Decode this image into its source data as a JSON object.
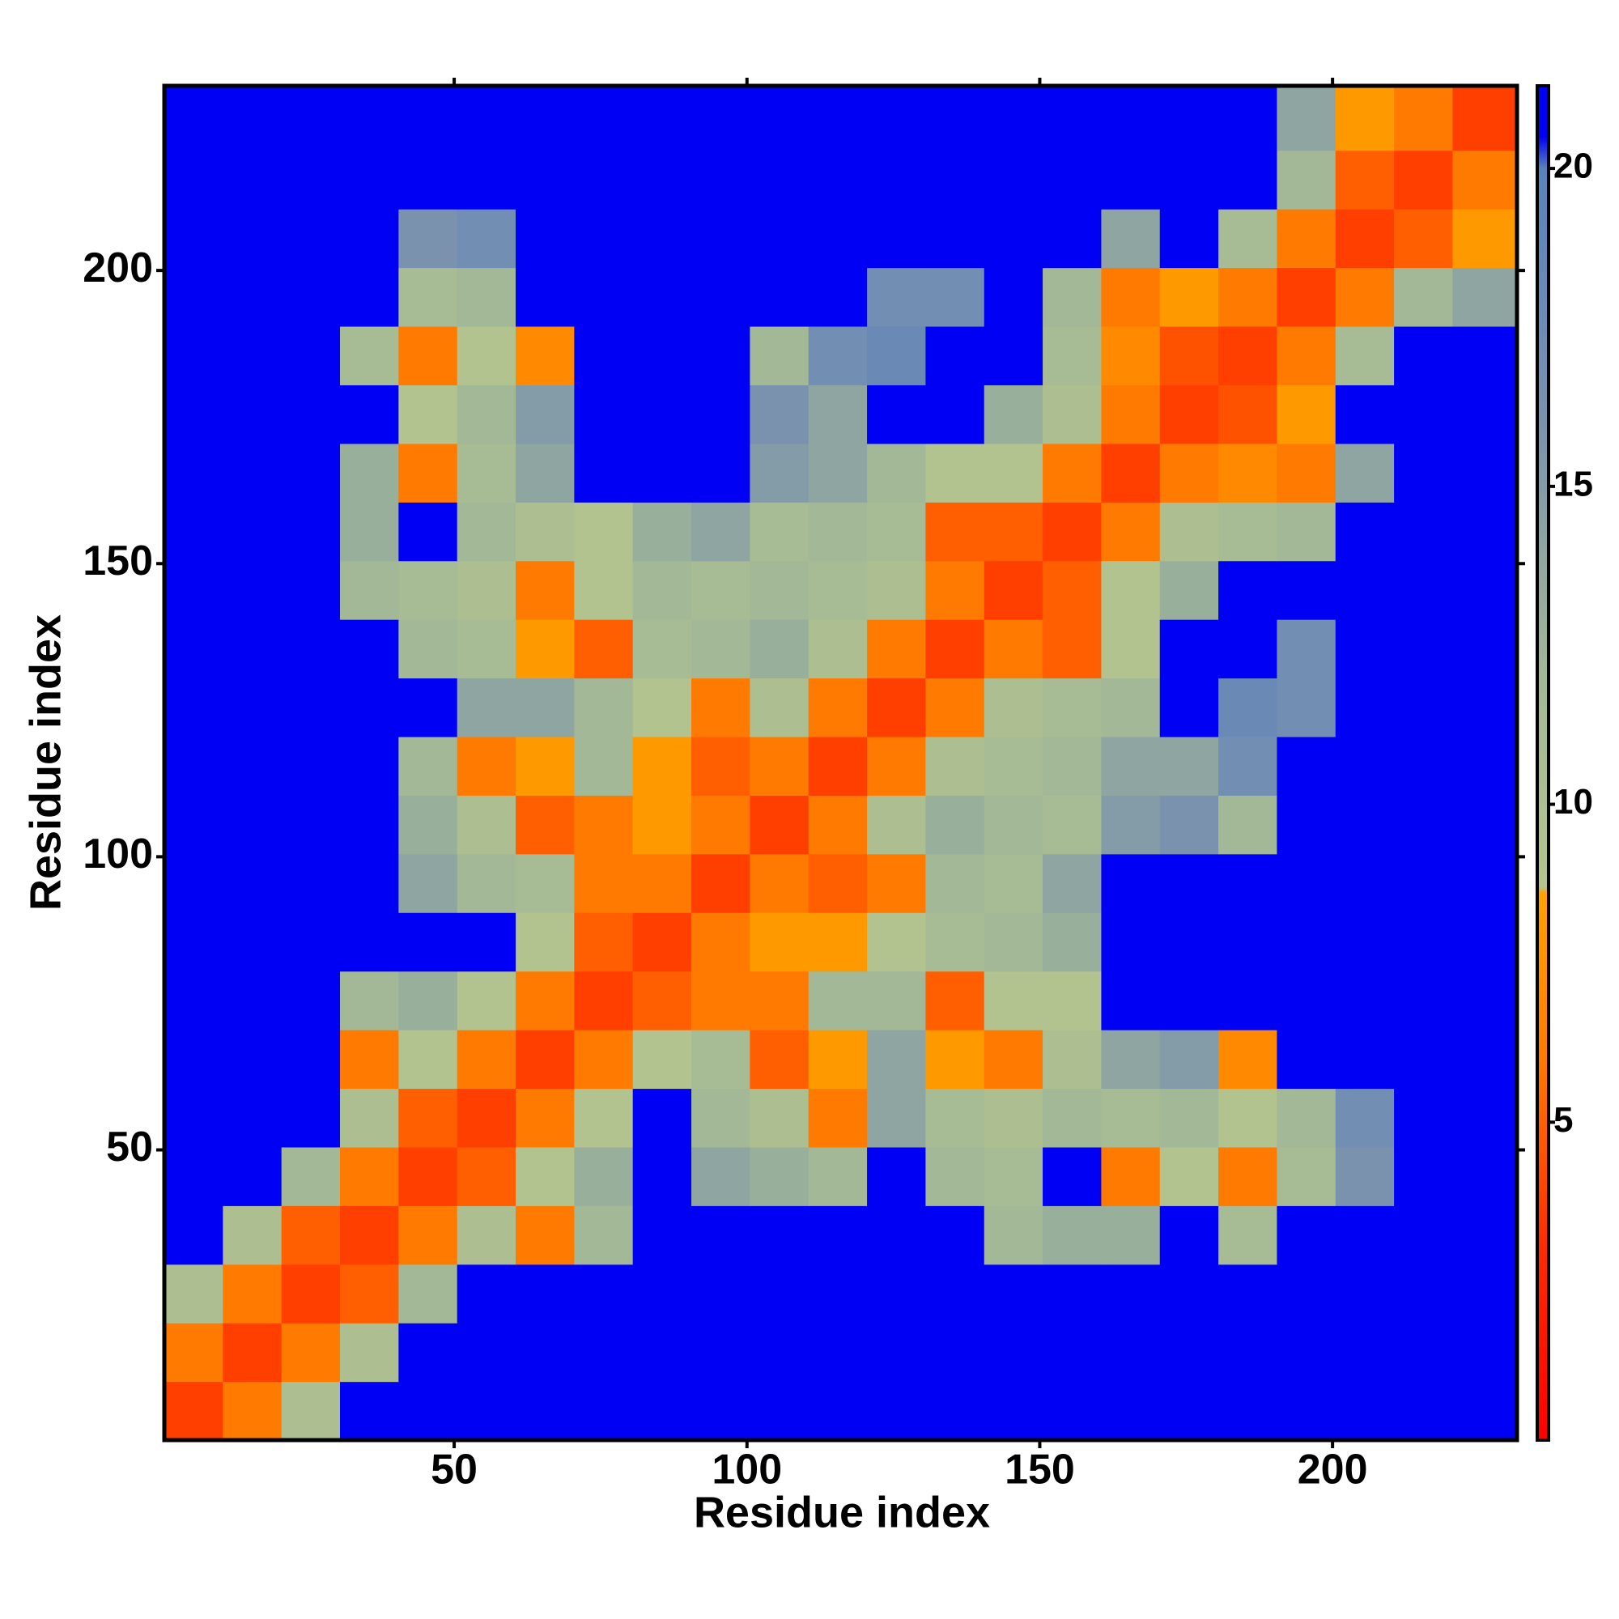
{
  "chart_data": {
    "type": "heatmap",
    "xlabel": "Residue index",
    "ylabel": "Residue index",
    "xlim": [
      0.5,
      231.5
    ],
    "ylim": [
      0.5,
      231.5
    ],
    "xticks": [
      50,
      100,
      150,
      200
    ],
    "yticks": [
      50,
      100,
      150,
      200
    ],
    "x_edges": [
      0.5,
      10.5,
      20.5,
      30.5,
      40.5,
      50.5,
      60.5,
      70.5,
      80.5,
      90.5,
      100.5,
      110.5,
      120.5,
      130.5,
      140.5,
      150.5,
      160.5,
      170.5,
      180.5,
      190.5,
      200.5,
      210.5,
      220.5,
      231.5
    ],
    "y_edges": [
      0.5,
      10.5,
      20.5,
      30.5,
      40.5,
      50.5,
      60.5,
      70.5,
      80.5,
      90.5,
      100.5,
      110.5,
      120.5,
      130.5,
      140.5,
      150.5,
      160.5,
      170.5,
      180.5,
      190.5,
      200.5,
      210.5,
      220.5,
      231.5
    ],
    "z": [
      [
        3.8,
        6,
        10,
        21,
        21,
        21,
        21,
        21,
        21,
        21,
        21,
        21,
        21,
        21,
        21,
        21,
        21,
        21,
        21,
        21,
        21,
        21,
        21
      ],
      [
        6,
        3.8,
        6,
        10,
        21,
        21,
        21,
        21,
        21,
        21,
        21,
        21,
        21,
        21,
        21,
        21,
        21,
        21,
        21,
        21,
        21,
        21,
        21
      ],
      [
        10,
        6,
        3.8,
        5,
        12,
        21,
        21,
        21,
        21,
        21,
        21,
        21,
        21,
        21,
        21,
        21,
        21,
        21,
        21,
        21,
        21,
        21,
        21
      ],
      [
        21,
        10,
        5,
        3.8,
        6,
        10,
        6,
        12,
        21,
        21,
        21,
        21,
        21,
        21,
        12,
        13,
        13,
        21,
        11,
        21,
        21,
        21,
        21
      ],
      [
        21,
        21,
        12,
        6,
        3.8,
        5,
        9,
        13,
        21,
        14,
        13,
        12,
        21,
        12,
        11,
        21,
        6,
        9,
        6,
        11,
        16,
        21,
        21
      ],
      [
        21,
        21,
        21,
        10,
        5,
        3.8,
        6,
        9,
        21,
        12,
        10,
        6,
        14,
        11,
        10,
        12,
        11,
        12,
        9,
        12,
        17,
        21,
        21
      ],
      [
        21,
        21,
        21,
        6,
        9,
        6,
        3.8,
        6,
        9,
        11,
        5,
        8,
        14,
        8,
        6,
        10,
        14,
        15,
        7,
        21,
        21,
        21,
        21
      ],
      [
        21,
        21,
        21,
        12,
        13,
        9,
        6,
        3.8,
        5,
        6,
        6,
        12,
        12,
        5,
        9,
        9,
        21,
        21,
        21,
        21,
        21,
        21,
        21
      ],
      [
        21,
        21,
        21,
        21,
        21,
        21,
        9,
        5,
        3.8,
        6,
        8,
        8,
        9,
        11,
        12,
        13,
        21,
        21,
        21,
        21,
        21,
        21,
        21
      ],
      [
        21,
        21,
        21,
        21,
        14,
        12,
        11,
        6,
        6,
        3.8,
        6,
        5,
        6,
        12,
        11,
        14,
        21,
        21,
        21,
        21,
        21,
        21,
        21
      ],
      [
        21,
        21,
        21,
        21,
        13,
        10,
        5,
        6,
        8,
        6,
        3.8,
        6,
        10,
        13,
        12,
        11,
        15,
        16,
        12,
        21,
        21,
        21,
        21
      ],
      [
        21,
        21,
        21,
        21,
        12,
        6,
        8,
        12,
        8,
        5,
        6,
        3.8,
        6,
        10,
        11,
        12,
        14,
        14,
        17,
        21,
        21,
        21,
        21
      ],
      [
        21,
        21,
        21,
        21,
        21,
        14,
        14,
        12,
        9,
        6,
        10,
        6,
        3.8,
        6,
        10,
        11,
        12,
        21,
        18,
        17,
        21,
        21,
        21
      ],
      [
        21,
        21,
        21,
        21,
        12,
        11,
        8,
        5,
        11,
        12,
        13,
        10,
        6,
        3.8,
        6,
        5,
        9,
        21,
        21,
        17,
        21,
        21,
        21
      ],
      [
        21,
        21,
        21,
        12,
        11,
        10,
        6,
        9,
        12,
        11,
        12,
        11,
        10,
        6,
        3.8,
        5,
        9,
        13,
        21,
        21,
        21,
        21,
        21
      ],
      [
        21,
        21,
        21,
        13,
        21,
        12,
        10,
        9,
        13,
        14,
        11,
        12,
        11,
        5,
        5,
        3.8,
        6,
        10,
        11,
        12,
        21,
        21,
        21
      ],
      [
        21,
        21,
        21,
        13,
        6,
        11,
        14,
        21,
        21,
        21,
        15,
        14,
        12,
        9,
        9,
        6,
        3.8,
        6,
        7,
        6,
        14,
        21,
        21
      ],
      [
        21,
        21,
        21,
        21,
        9,
        12,
        15,
        21,
        21,
        21,
        16,
        14,
        21,
        21,
        13,
        10,
        6,
        3.8,
        4.5,
        8,
        21,
        21,
        21
      ],
      [
        21,
        21,
        21,
        11,
        6,
        9,
        7,
        21,
        21,
        21,
        12,
        17,
        18,
        21,
        21,
        11,
        7,
        4.5,
        3.8,
        6,
        11,
        21,
        21
      ],
      [
        21,
        21,
        21,
        21,
        11,
        12,
        21,
        21,
        21,
        21,
        21,
        21,
        17,
        17,
        21,
        12,
        6,
        8,
        6,
        3.8,
        6,
        12,
        14
      ],
      [
        21,
        21,
        21,
        21,
        16,
        17,
        21,
        21,
        21,
        21,
        21,
        21,
        21,
        21,
        21,
        21,
        14,
        21,
        11,
        6,
        3.8,
        5,
        8
      ],
      [
        21,
        21,
        21,
        21,
        21,
        21,
        21,
        21,
        21,
        21,
        21,
        21,
        21,
        21,
        21,
        21,
        21,
        21,
        21,
        12,
        5,
        3.8,
        6
      ],
      [
        21,
        21,
        21,
        21,
        21,
        21,
        21,
        21,
        21,
        21,
        21,
        21,
        21,
        21,
        21,
        21,
        21,
        21,
        21,
        14,
        8,
        6,
        3.8
      ]
    ],
    "colorscale": [
      [
        0,
        "#ff0000"
      ],
      [
        3,
        "#ff2a00"
      ],
      [
        6,
        "#ff7a00"
      ],
      [
        8.6,
        "#ffa200"
      ],
      [
        8.7,
        "#b4c48e"
      ],
      [
        12,
        "#a2b896"
      ],
      [
        16,
        "#7a92ae"
      ],
      [
        20,
        "#5a82bc"
      ],
      [
        20.5,
        "#0000f5"
      ],
      [
        22,
        "#0000f5"
      ]
    ],
    "colorbar_lim": [
      0,
      21.3
    ],
    "colorbar_ticks": [
      5,
      10,
      15,
      20
    ]
  }
}
